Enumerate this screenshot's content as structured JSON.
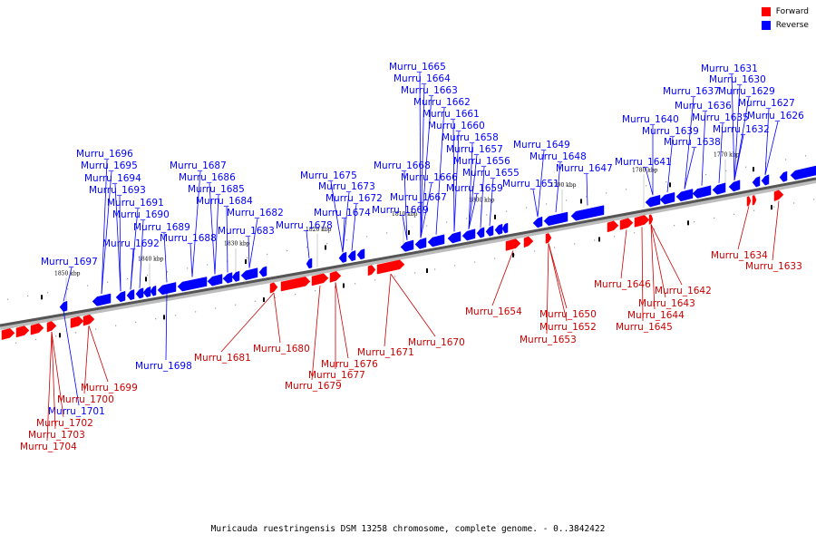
{
  "legend": {
    "forward_label": "Forward",
    "forward_color": "#ff0000",
    "reverse_label": "Reverse",
    "reverse_color": "#0000ff"
  },
  "caption": "Muricauda ruestringensis DSM 13258 chromosome, complete genome. - 0..3842422",
  "ticks": [
    "1850 kbp",
    "1840 kbp",
    "1830 kbp",
    "1820 kbp",
    "1810 kbp",
    "1800 kbp",
    "1790 kbp",
    "1780 kbp",
    "1770 kbp"
  ],
  "reverse_genes": [
    "Murru_1697",
    "Murru_1696",
    "Murru_1695",
    "Murru_1694",
    "Murru_1693",
    "Murru_1691",
    "Murru_1690",
    "Murru_1689",
    "Murru_1692",
    "Murru_1688",
    "Murru_1687",
    "Murru_1686",
    "Murru_1685",
    "Murru_1684",
    "Murru_1683",
    "Murru_1682",
    "Murru_1678",
    "Murru_1675",
    "Murru_1673",
    "Murru_1672",
    "Murru_1674",
    "Murru_1668",
    "Murru_1669",
    "Murru_1667",
    "Murru_1666",
    "Murru_1665",
    "Murru_1664",
    "Murru_1663",
    "Murru_1662",
    "Murru_1661",
    "Murru_1660",
    "Murru_1658",
    "Murru_1657",
    "Murru_1656",
    "Murru_1655",
    "Murru_1659",
    "Murru_1651",
    "Murru_1649",
    "Murru_1648",
    "Murru_1647",
    "Murru_1641",
    "Murru_1640",
    "Murru_1639",
    "Murru_1638",
    "Murru_1637",
    "Murru_1636",
    "Murru_1635",
    "Murru_1632",
    "Murru_1631",
    "Murru_1630",
    "Murru_1629",
    "Murru_1627",
    "Murru_1626",
    "Murru_1698",
    "Murru_1701"
  ],
  "forward_genes": [
    "Murru_1699",
    "Murru_1700",
    "Murru_1702",
    "Murru_1703",
    "Murru_1704",
    "Murru_1681",
    "Murru_1680",
    "Murru_1679",
    "Murru_1677",
    "Murru_1676",
    "Murru_1671",
    "Murru_1670",
    "Murru_1654",
    "Murru_1652",
    "Murru_1653",
    "Murru_1650",
    "Murru_1646",
    "Murru_1645",
    "Murru_1644",
    "Murru_1643",
    "Murru_1642",
    "Murru_1634",
    "Murru_1633"
  ]
}
